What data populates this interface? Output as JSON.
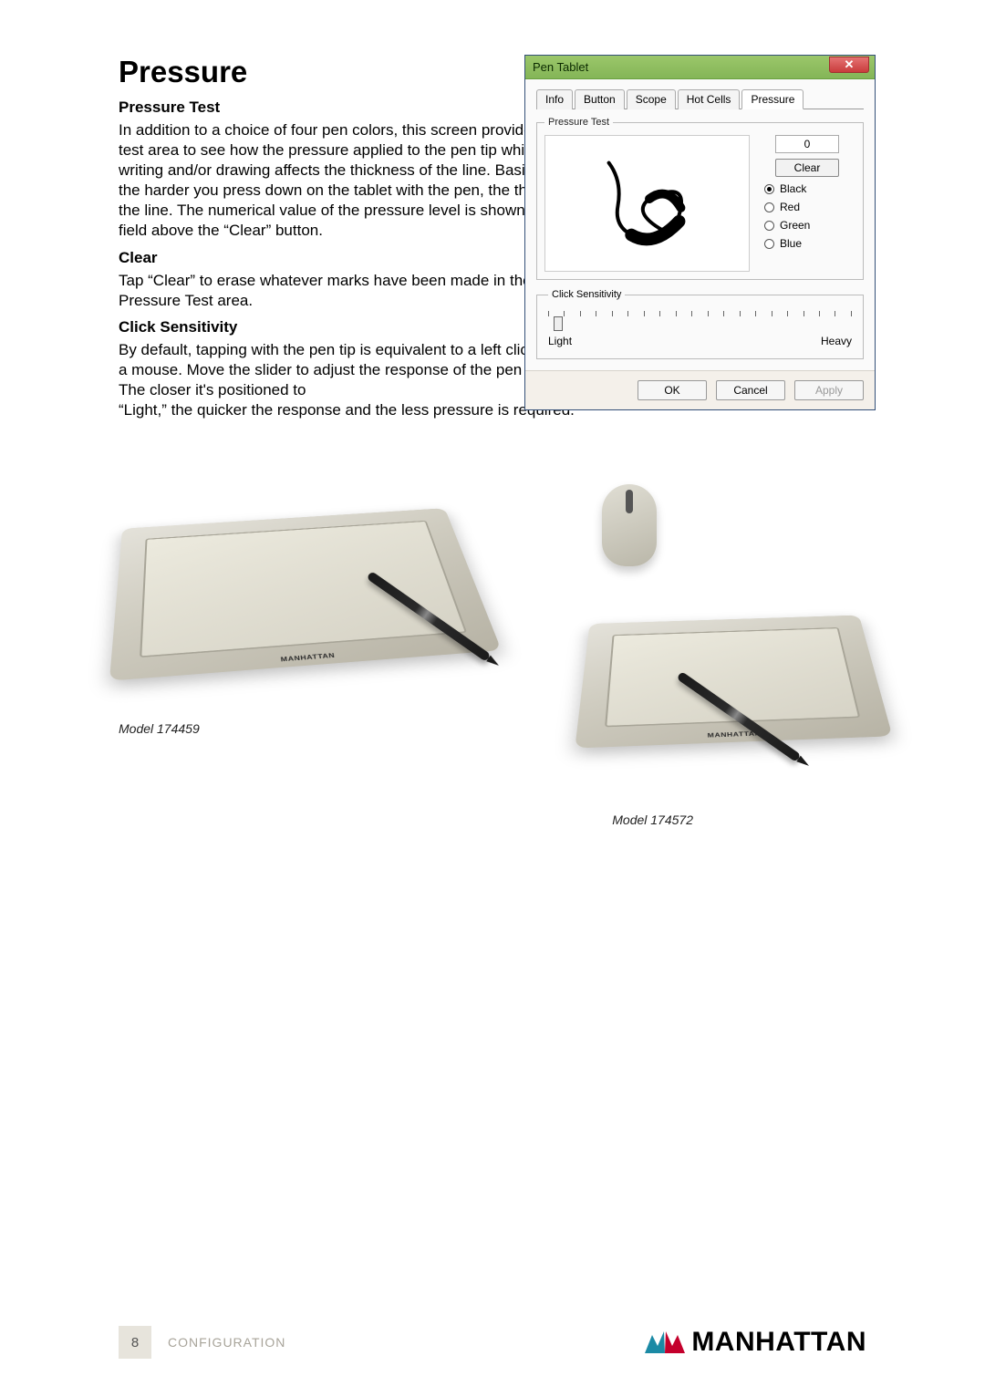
{
  "heading": "Pressure",
  "sections": {
    "pressure_test": {
      "title": "Pressure Test",
      "body": "In addition to a choice of four pen colors, this screen provides a test area to see how the pressure applied to the pen tip while writing and/or drawing affects the thickness of the line. Basically, the harder you press down on the tablet with the pen, the thicker the line. The numerical value of the pressure level is shown in the field above the “Clear” button."
    },
    "clear": {
      "title": "Clear",
      "body": "Tap “Clear” to erase whatever marks have been made in the Pressure Test area."
    },
    "click_sensitivity": {
      "title": "Click Sensitivity",
      "body_first": "By default, tapping with the pen tip is equivalent to a left click on a mouse. Move the slider to adjust the response of the pen tip. The closer it's positioned to",
      "body_full": "“Light,” the quicker the response and the less pressure is required."
    }
  },
  "dialog": {
    "title": "Pen Tablet",
    "tabs": [
      "Info",
      "Button",
      "Scope",
      "Hot Cells",
      "Pressure"
    ],
    "active_tab": "Pressure",
    "pressure_test_legend": "Pressure Test",
    "pressure_value": "0",
    "clear_btn": "Clear",
    "colors": [
      {
        "label": "Black",
        "checked": true
      },
      {
        "label": "Red",
        "checked": false
      },
      {
        "label": "Green",
        "checked": false
      },
      {
        "label": "Blue",
        "checked": false
      }
    ],
    "click_sens_legend": "Click Sensitivity",
    "slider": {
      "left": "Light",
      "right": "Heavy",
      "ticks": 20
    },
    "buttons": {
      "ok": "OK",
      "cancel": "Cancel",
      "apply": "Apply"
    }
  },
  "products": {
    "model1": "Model 174459",
    "model2": "Model 174572",
    "tablet_logo": "MANHATTAN"
  },
  "footer": {
    "page": "8",
    "section": "CONFIGURATION",
    "brand": "MANHATTAN"
  },
  "colors": {
    "titlebar_gradient_top": "#9bc76a",
    "titlebar_gradient_bottom": "#84b557",
    "close_btn": "#c93c3c",
    "brand_teal": "#1b8aa5",
    "brand_red": "#c4002c"
  }
}
